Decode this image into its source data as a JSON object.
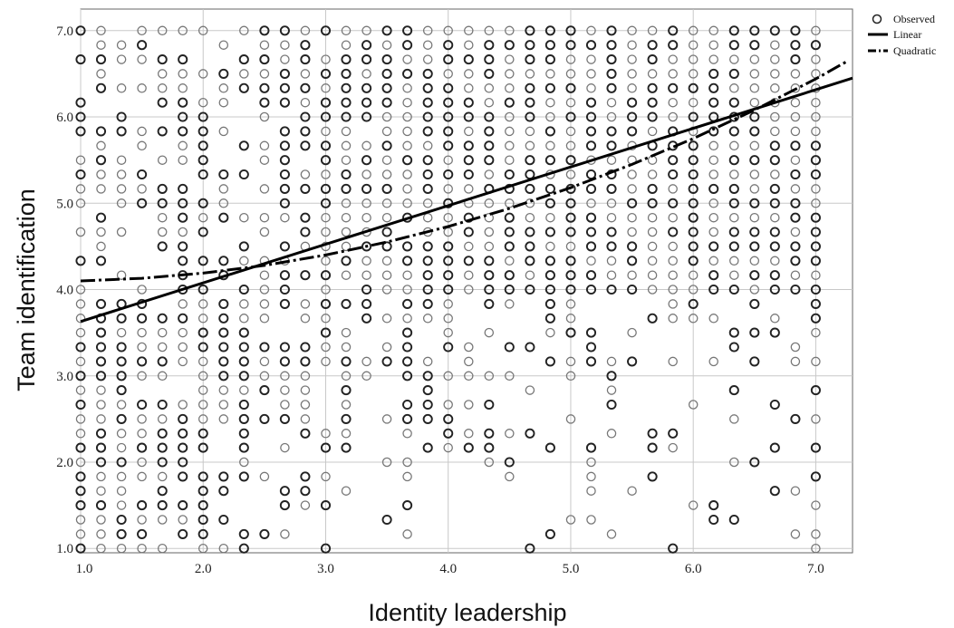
{
  "chart_data": {
    "type": "scatter",
    "title": "",
    "xlabel": "Identity leadership",
    "ylabel": "Team identification",
    "xlim": [
      1.0,
      7.3
    ],
    "ylim": [
      0.95,
      7.25
    ],
    "x_ticks": [
      "1.0",
      "2.0",
      "3.0",
      "4.0",
      "5.0",
      "6.0",
      "7.0"
    ],
    "y_ticks": [
      "1.0",
      "2.0",
      "3.0",
      "4.0",
      "5.0",
      "6.0",
      "7.0"
    ],
    "grid": true,
    "legend_position": "top-right-outside",
    "series": [
      {
        "name": "Observed",
        "kind": "points",
        "note_levels": "x and y take values on a 1/6 step grid from 1.0 to 7.0; density increases along the diagonal"
      },
      {
        "name": "Linear",
        "kind": "line",
        "style": "solid",
        "x": [
          1.0,
          7.3
        ],
        "y": [
          3.63,
          6.45
        ]
      },
      {
        "name": "Quadratic",
        "kind": "line",
        "style": "dash-dot",
        "x": [
          1.0,
          1.5,
          2.0,
          2.5,
          3.0,
          3.5,
          4.0,
          4.5,
          5.0,
          5.5,
          6.0,
          6.5,
          7.0,
          7.25
        ],
        "y": [
          4.1,
          4.13,
          4.19,
          4.28,
          4.4,
          4.55,
          4.73,
          4.94,
          5.18,
          5.45,
          5.75,
          6.08,
          6.44,
          6.64
        ]
      }
    ]
  }
}
